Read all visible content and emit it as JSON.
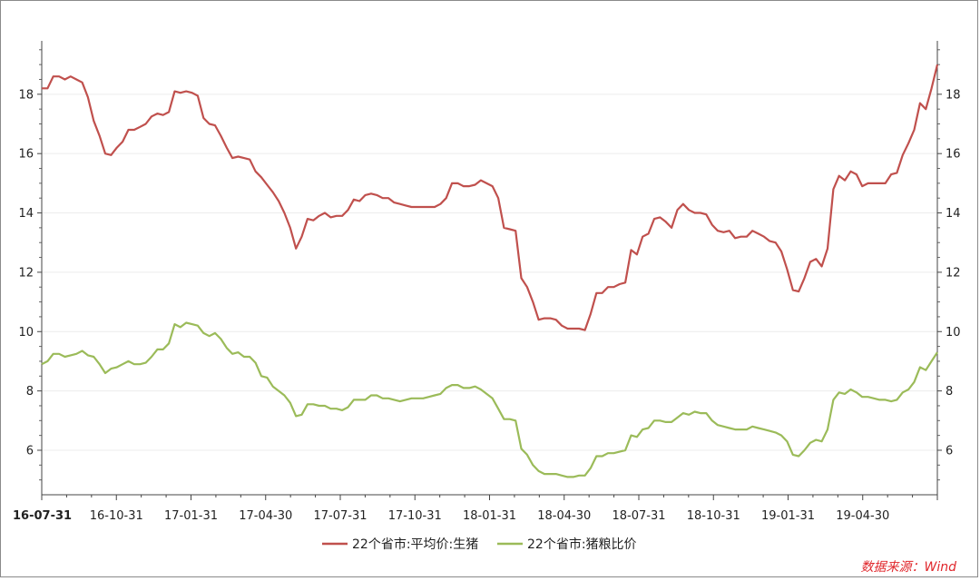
{
  "source_note": "数据来源：Wind",
  "chart_data": {
    "type": "line",
    "title": "",
    "xlabel": "",
    "ylabel": "",
    "y_ticks": [
      6,
      8,
      10,
      12,
      14,
      16,
      18
    ],
    "x_ticks": [
      "16-07-31",
      "16-10-31",
      "17-01-31",
      "17-04-30",
      "17-07-31",
      "17-10-31",
      "18-01-31",
      "18-04-30",
      "18-07-31",
      "18-10-31",
      "19-01-31",
      "19-04-30"
    ],
    "grid": "horizontal",
    "legend_position": "bottom",
    "series": [
      {
        "name": "22个省市:平均价:生猪",
        "color": "#c0504d",
        "values": [
          18.2,
          18.2,
          18.6,
          18.6,
          18.5,
          18.6,
          18.5,
          18.4,
          17.9,
          17.1,
          16.6,
          16.0,
          15.95,
          16.2,
          16.4,
          16.8,
          16.8,
          16.9,
          17.0,
          17.25,
          17.35,
          17.3,
          17.4,
          18.1,
          18.05,
          18.1,
          18.05,
          17.95,
          17.2,
          17.0,
          16.95,
          16.6,
          16.2,
          15.85,
          15.9,
          15.85,
          15.8,
          15.4,
          15.2,
          14.95,
          14.7,
          14.4,
          14.0,
          13.5,
          12.8,
          13.2,
          13.8,
          13.75,
          13.9,
          14.0,
          13.85,
          13.9,
          13.9,
          14.1,
          14.45,
          14.4,
          14.6,
          14.65,
          14.6,
          14.5,
          14.5,
          14.35,
          14.3,
          14.25,
          14.2,
          14.2,
          14.2,
          14.2,
          14.2,
          14.3,
          14.5,
          15.0,
          15.0,
          14.9,
          14.9,
          14.95,
          15.1,
          15.0,
          14.9,
          14.5,
          13.5,
          13.45,
          13.4,
          11.8,
          11.5,
          11.0,
          10.4,
          10.45,
          10.45,
          10.4,
          10.2,
          10.1,
          10.1,
          10.1,
          10.05,
          10.6,
          11.3,
          11.3,
          11.5,
          11.5,
          11.6,
          11.65,
          12.75,
          12.6,
          13.2,
          13.3,
          13.8,
          13.85,
          13.7,
          13.5,
          14.1,
          14.3,
          14.1,
          14.0,
          14.0,
          13.95,
          13.6,
          13.4,
          13.35,
          13.4,
          13.15,
          13.2,
          13.2,
          13.4,
          13.3,
          13.2,
          13.05,
          13.0,
          12.7,
          12.1,
          11.4,
          11.35,
          11.8,
          12.35,
          12.45,
          12.2,
          12.8,
          14.8,
          15.25,
          15.1,
          15.4,
          15.3,
          14.9,
          15.0,
          15.0,
          15.0,
          15.0,
          15.3,
          15.35,
          15.95,
          16.35,
          16.8,
          17.7,
          17.5,
          18.2,
          19.0
        ]
      },
      {
        "name": "22个省市:猪粮比价",
        "color": "#9bbb59",
        "values": [
          8.9,
          9.0,
          9.25,
          9.25,
          9.15,
          9.2,
          9.25,
          9.35,
          9.2,
          9.15,
          8.9,
          8.6,
          8.75,
          8.8,
          8.9,
          9.0,
          8.9,
          8.9,
          8.95,
          9.15,
          9.4,
          9.4,
          9.6,
          10.25,
          10.15,
          10.3,
          10.25,
          10.2,
          9.95,
          9.85,
          9.95,
          9.75,
          9.45,
          9.25,
          9.3,
          9.15,
          9.15,
          8.95,
          8.5,
          8.45,
          8.15,
          8.0,
          7.85,
          7.6,
          7.15,
          7.2,
          7.55,
          7.55,
          7.5,
          7.5,
          7.4,
          7.4,
          7.35,
          7.45,
          7.7,
          7.7,
          7.7,
          7.85,
          7.85,
          7.75,
          7.75,
          7.7,
          7.65,
          7.7,
          7.75,
          7.75,
          7.75,
          7.8,
          7.85,
          7.9,
          8.1,
          8.2,
          8.2,
          8.1,
          8.1,
          8.15,
          8.05,
          7.9,
          7.75,
          7.4,
          7.05,
          7.05,
          7.0,
          6.05,
          5.85,
          5.5,
          5.3,
          5.2,
          5.2,
          5.2,
          5.15,
          5.1,
          5.1,
          5.15,
          5.15,
          5.4,
          5.8,
          5.8,
          5.9,
          5.9,
          5.95,
          6.0,
          6.5,
          6.45,
          6.7,
          6.75,
          7.0,
          7.0,
          6.95,
          6.95,
          7.1,
          7.25,
          7.2,
          7.3,
          7.25,
          7.25,
          7.0,
          6.85,
          6.8,
          6.75,
          6.7,
          6.7,
          6.7,
          6.8,
          6.75,
          6.7,
          6.65,
          6.6,
          6.5,
          6.3,
          5.85,
          5.8,
          6.0,
          6.25,
          6.35,
          6.3,
          6.7,
          7.7,
          7.95,
          7.9,
          8.05,
          7.95,
          7.8,
          7.8,
          7.75,
          7.7,
          7.7,
          7.65,
          7.7,
          7.95,
          8.05,
          8.3,
          8.8,
          8.7,
          9.0,
          9.3
        ]
      }
    ]
  }
}
